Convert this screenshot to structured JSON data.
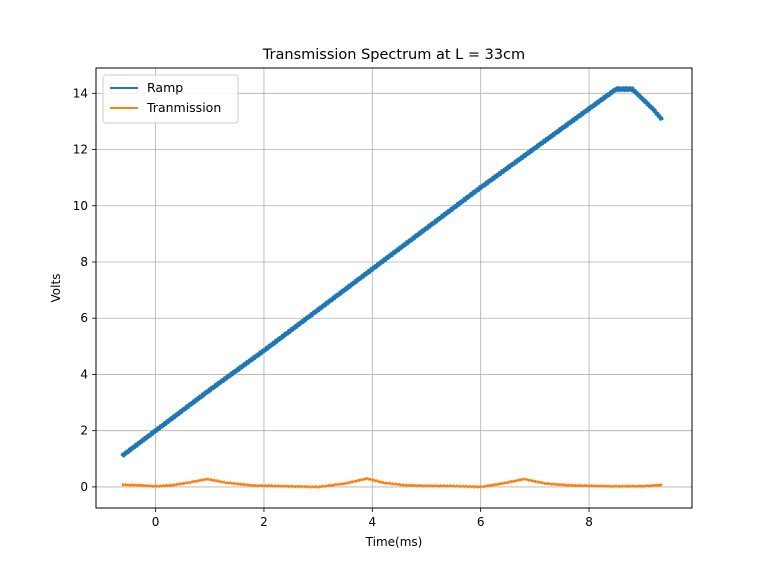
{
  "chart_data": {
    "type": "line",
    "title": "Transmission Spectrum at L = 33cm",
    "xlabel": "Time(ms)",
    "ylabel": "Volts",
    "xlim": [
      -1.1,
      9.9
    ],
    "ylim": [
      -0.75,
      14.9
    ],
    "xticks": [
      0,
      2,
      4,
      6,
      8
    ],
    "yticks": [
      0,
      2,
      4,
      6,
      8,
      10,
      12,
      14
    ],
    "grid": true,
    "legend": {
      "location": "upper-left",
      "entries": [
        "Ramp",
        "Tranmission"
      ]
    },
    "colors": {
      "Ramp": "#1f77b4",
      "Tranmission": "#ff7f0e"
    },
    "series": [
      {
        "name": "Ramp",
        "x": [
          -0.62,
          0.0,
          1.0,
          2.0,
          3.0,
          4.0,
          5.0,
          6.0,
          7.0,
          8.0,
          8.5,
          8.8,
          9.2,
          9.35
        ],
        "y": [
          1.1,
          2.0,
          3.45,
          4.85,
          6.3,
          7.75,
          9.2,
          10.65,
          12.05,
          13.45,
          14.15,
          14.15,
          13.4,
          13.05
        ]
      },
      {
        "name": "Tranmission",
        "x": [
          -0.62,
          -0.3,
          0.0,
          0.3,
          0.6,
          0.95,
          1.3,
          1.8,
          2.5,
          3.0,
          3.5,
          3.9,
          4.2,
          4.6,
          5.0,
          5.5,
          6.0,
          6.4,
          6.8,
          7.2,
          7.6,
          8.0,
          8.5,
          9.0,
          9.35
        ],
        "y": [
          0.08,
          0.06,
          0.02,
          0.06,
          0.15,
          0.28,
          0.15,
          0.05,
          0.02,
          0.0,
          0.12,
          0.3,
          0.15,
          0.06,
          0.04,
          0.03,
          0.0,
          0.12,
          0.28,
          0.12,
          0.06,
          0.04,
          0.02,
          0.03,
          0.07
        ]
      }
    ]
  }
}
